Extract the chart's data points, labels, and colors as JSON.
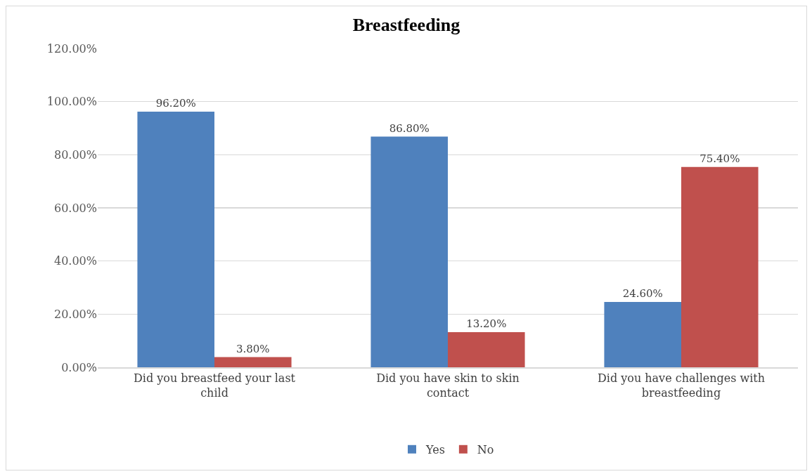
{
  "chart_data": {
    "type": "bar",
    "title": "Breastfeeding",
    "categories": [
      "Did you breastfeed your last child",
      "Did you have skin to skin contact",
      "Did you have challenges with breastfeeding"
    ],
    "series": [
      {
        "name": "Yes",
        "color": "#4f81bd",
        "values": [
          96.2,
          86.8,
          24.6
        ],
        "value_labels": [
          "96.20%",
          "86.80%",
          "24.60%"
        ]
      },
      {
        "name": "No",
        "color": "#c0504d",
        "values": [
          3.8,
          13.2,
          75.4
        ],
        "value_labels": [
          "3.80%",
          "13.20%",
          "75.40%"
        ]
      }
    ],
    "ylim": [
      0,
      120
    ],
    "yticks": [
      {
        "value": 0,
        "label": "0.00%"
      },
      {
        "value": 20,
        "label": "20.00%"
      },
      {
        "value": 40,
        "label": "40.00%"
      },
      {
        "value": 60,
        "label": "60.00%"
      },
      {
        "value": 80,
        "label": "80.00%"
      },
      {
        "value": 100,
        "label": "100.00%"
      },
      {
        "value": 120,
        "label": "120.00%"
      }
    ],
    "grid": "y",
    "legend": "bottom"
  }
}
